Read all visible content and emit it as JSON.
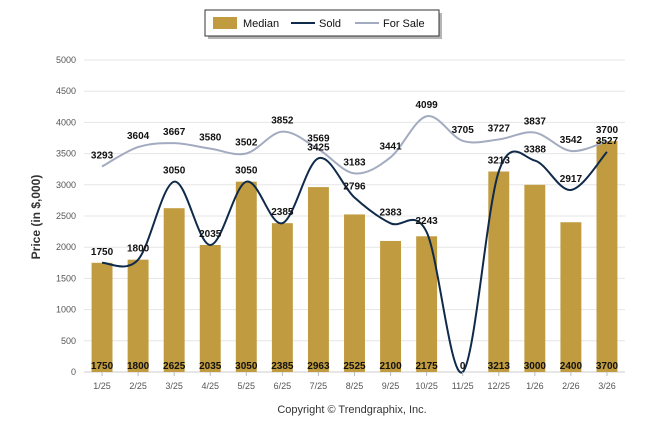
{
  "chart_data": {
    "type": "bar",
    "title": "",
    "xlabel": "",
    "ylabel": "Price (in $,000)",
    "ylim": [
      0,
      5000
    ],
    "yticks": [
      0,
      500,
      1000,
      1500,
      2000,
      2500,
      3000,
      3500,
      4000,
      4500,
      5000
    ],
    "categories": [
      "1/25",
      "2/25",
      "3/25",
      "4/25",
      "5/25",
      "6/25",
      "7/25",
      "8/25",
      "9/25",
      "10/25",
      "11/25",
      "12/25",
      "1/26",
      "2/26",
      "3/26"
    ],
    "series": [
      {
        "name": "Median",
        "kind": "bar",
        "color": "#c09b3f",
        "values": [
          1750,
          1800,
          2625,
          2035,
          3050,
          2385,
          2963,
          2525,
          2100,
          2175,
          0,
          3213,
          3000,
          2400,
          3700
        ]
      },
      {
        "name": "Sold",
        "kind": "line",
        "color": "#0f2a4a",
        "values": [
          1750,
          1800,
          3050,
          2035,
          3050,
          2385,
          3425,
          2796,
          2383,
          2243,
          0,
          3213,
          3388,
          2917,
          3527
        ]
      },
      {
        "name": "For Sale",
        "kind": "line",
        "color": "#a3abc0",
        "values": [
          3293,
          3604,
          3667,
          3580,
          3502,
          3852,
          3569,
          3183,
          3441,
          4099,
          3705,
          3727,
          3837,
          3542,
          3700
        ]
      }
    ],
    "legend_position": "top-center",
    "grid": true
  },
  "footer": {
    "copyright": "Copyright © Trendgraphix, Inc."
  }
}
